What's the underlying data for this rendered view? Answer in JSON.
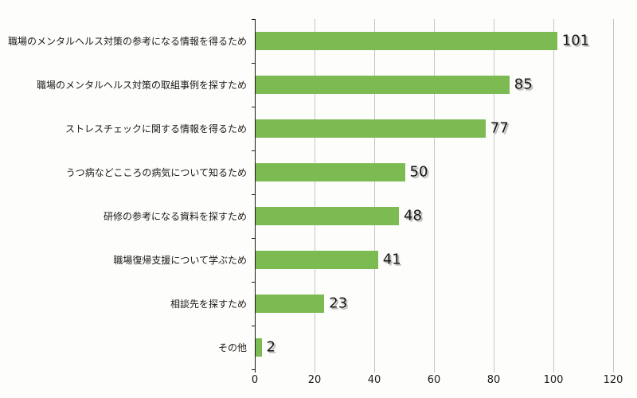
{
  "chart_data": {
    "type": "bar",
    "orientation": "horizontal",
    "title": "",
    "xlabel": "",
    "ylabel": "",
    "categories": [
      "職場のメンタルヘルス対策の参考になる情報を得るため",
      "職場のメンタルヘルス対策の取組事例を探すため",
      "ストレスチェックに関する情報を得るため",
      "うつ病などこころの病気について知るため",
      "研修の参考になる資料を探すため",
      "職場復帰支援について学ぶため",
      "相談先を探すため",
      "その他"
    ],
    "values": [
      101,
      85,
      77,
      50,
      48,
      41,
      23,
      2
    ],
    "value_labels": [
      "101",
      "85",
      "77",
      "50",
      "48",
      "41",
      "23",
      "2"
    ],
    "xlim": [
      0,
      120
    ],
    "x_ticks": [
      0,
      20,
      40,
      60,
      80,
      100,
      120
    ],
    "x_tick_labels": [
      "0",
      "20",
      "40",
      "60",
      "80",
      "100",
      "120"
    ],
    "grid": true,
    "legend": null,
    "colors": {
      "bar": "#7cba52",
      "gridline": "#c6c6c6",
      "axis": "#1a1a1a",
      "text": "#1a1a1a",
      "background": "#fdfdfb"
    }
  }
}
